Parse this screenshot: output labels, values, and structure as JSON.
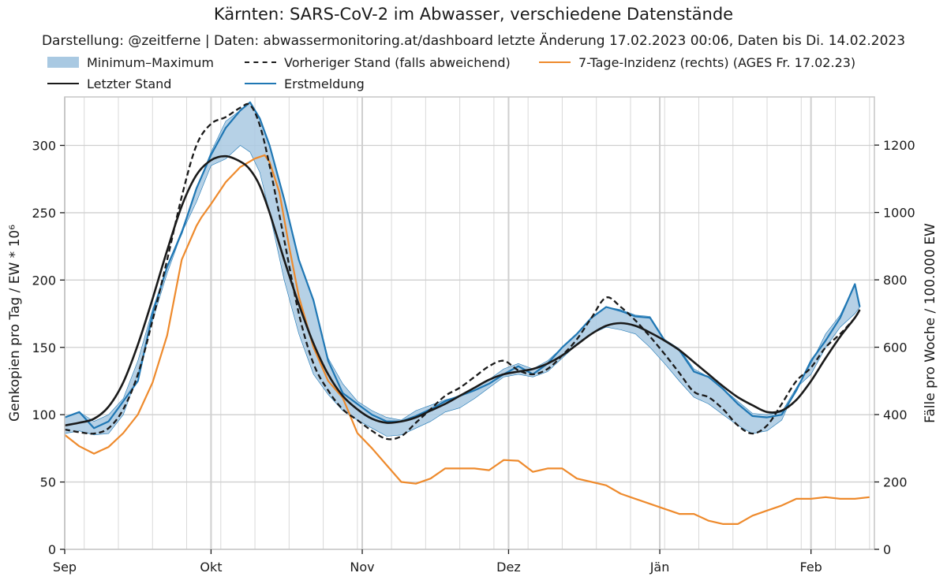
{
  "chart_data": {
    "type": "line",
    "title": "Kärnten: SARS-CoV-2 im Abwasser, verschiedene Datenstände",
    "subtitle": "Darstellung: @zeitferne | Daten: abwassermonitoring.at/dashboard letzte Änderung 17.02.2023 00:06, Daten bis Di. 14.02.2023",
    "ylabel": "Genkopien pro Tag / EW * 10⁶",
    "y2label": "Fälle pro Woche / 100.000 EW",
    "ylim": [
      0,
      336
    ],
    "y2lim": [
      0,
      1343
    ],
    "yticks": [
      0,
      50,
      100,
      150,
      200,
      250,
      300
    ],
    "y2ticks": [
      0,
      200,
      400,
      600,
      800,
      1000,
      1200
    ],
    "xlim_day": [
      0,
      166
    ],
    "xticks": [
      {
        "day": 0,
        "label": "Sep"
      },
      {
        "day": 30,
        "label": "Okt"
      },
      {
        "day": 61,
        "label": "Nov"
      },
      {
        "day": 91,
        "label": "Dez"
      },
      {
        "day": 122,
        "label": "Jän"
      },
      {
        "day": 153,
        "label": "Feb"
      }
    ],
    "minor_grid_days": [
      4,
      11,
      18,
      25,
      32,
      39,
      46,
      53,
      60,
      67,
      74,
      81,
      88,
      95,
      102,
      109,
      116,
      123,
      130,
      137,
      144,
      151,
      158,
      165
    ],
    "grid": true,
    "legend_position": "top",
    "colors": {
      "band": "#a9c9e2",
      "band_edge": "#1f77b4",
      "latest": "#1a1a1a",
      "previous": "#1a1a1a",
      "first": "#1f77b4",
      "incidence": "#ee8a2c"
    },
    "series": [
      {
        "name": "Minimum–Maximum",
        "kind": "band",
        "x": [
          0,
          3,
          6,
          9,
          12,
          15,
          18,
          21,
          24,
          27,
          30,
          33,
          36,
          38,
          40,
          42,
          45,
          48,
          51,
          54,
          57,
          60,
          63,
          66,
          69,
          72,
          75,
          78,
          81,
          84,
          87,
          90,
          93,
          96,
          99,
          102,
          105,
          108,
          111,
          114,
          117,
          120,
          123,
          126,
          129,
          132,
          135,
          138,
          141,
          144,
          147,
          150,
          153,
          156,
          159,
          162,
          163
        ],
        "low": [
          86,
          88,
          85,
          86,
          100,
          130,
          170,
          205,
          235,
          258,
          285,
          290,
          300,
          295,
          280,
          250,
          200,
          160,
          130,
          115,
          103,
          96,
          90,
          84,
          85,
          90,
          95,
          102,
          105,
          112,
          120,
          128,
          130,
          128,
          132,
          142,
          152,
          160,
          165,
          163,
          160,
          150,
          138,
          125,
          113,
          108,
          100,
          92,
          86,
          88,
          96,
          120,
          130,
          150,
          165,
          175,
          180
        ],
        "high": [
          98,
          102,
          95,
          100,
          112,
          140,
          178,
          210,
          237,
          268,
          295,
          318,
          326,
          332,
          320,
          300,
          260,
          215,
          185,
          142,
          123,
          110,
          103,
          98,
          96,
          103,
          107,
          111,
          114,
          120,
          126,
          134,
          138,
          134,
          140,
          150,
          160,
          172,
          180,
          178,
          174,
          173,
          156,
          149,
          134,
          128,
          119,
          110,
          101,
          100,
          102,
          120,
          138,
          160,
          174,
          197,
          180
        ]
      },
      {
        "name": "Vorheriger Stand (falls abweichend)",
        "kind": "dashed",
        "x": [
          0,
          3,
          6,
          9,
          12,
          15,
          18,
          21,
          24,
          27,
          30,
          33,
          36,
          38,
          40,
          42,
          45,
          48,
          51,
          54,
          57,
          60,
          63,
          66,
          69,
          72,
          75,
          78,
          81,
          84,
          87,
          90,
          93,
          96,
          99,
          102,
          105,
          108,
          111,
          114,
          117,
          120,
          123,
          126,
          129,
          132,
          135,
          138,
          141,
          144,
          147,
          150,
          153,
          156,
          159,
          162,
          163
        ],
        "values": [
          89,
          87,
          86,
          90,
          104,
          130,
          170,
          215,
          262,
          300,
          316,
          321,
          328,
          330,
          315,
          285,
          230,
          175,
          138,
          118,
          104,
          96,
          88,
          82,
          84,
          94,
          104,
          114,
          120,
          128,
          136,
          140,
          133,
          130,
          134,
          144,
          156,
          172,
          187,
          180,
          170,
          158,
          145,
          131,
          117,
          113,
          104,
          92,
          86,
          92,
          108,
          125,
          135,
          150,
          160,
          172,
          178
        ]
      },
      {
        "name": "Letzter Stand",
        "kind": "solid",
        "x": [
          0,
          3,
          6,
          9,
          12,
          15,
          18,
          21,
          24,
          27,
          30,
          33,
          36,
          38,
          40,
          42,
          45,
          48,
          51,
          54,
          57,
          60,
          63,
          66,
          69,
          72,
          75,
          78,
          81,
          84,
          87,
          90,
          93,
          96,
          99,
          102,
          105,
          108,
          111,
          114,
          117,
          120,
          123,
          126,
          129,
          132,
          135,
          138,
          141,
          144,
          147,
          150,
          153,
          156,
          159,
          162,
          163
        ],
        "values": [
          92,
          94,
          97,
          106,
          124,
          152,
          186,
          222,
          255,
          278,
          289,
          292,
          288,
          282,
          270,
          250,
          215,
          182,
          153,
          130,
          114,
          104,
          97,
          94,
          95,
          98,
          103,
          108,
          114,
          120,
          126,
          130,
          132,
          134,
          138,
          144,
          152,
          160,
          166,
          168,
          166,
          161,
          155,
          148,
          139,
          130,
          121,
          113,
          107,
          102,
          103,
          111,
          125,
          142,
          158,
          172,
          178
        ]
      },
      {
        "name": "Erstmeldung",
        "kind": "solid",
        "x": [
          0,
          3,
          6,
          9,
          12,
          15,
          18,
          21,
          24,
          27,
          30,
          33,
          36,
          38,
          40,
          42,
          45,
          48,
          51,
          54,
          57,
          60,
          63,
          66,
          69,
          72,
          75,
          78,
          81,
          84,
          87,
          90,
          93,
          96,
          99,
          102,
          105,
          108,
          111,
          114,
          117,
          120,
          123,
          126,
          129,
          132,
          135,
          138,
          141,
          144,
          147,
          150,
          153,
          156,
          159,
          162,
          163
        ],
        "values": [
          98,
          102,
          90,
          95,
          110,
          125,
          175,
          210,
          235,
          268,
          293,
          313,
          326,
          332,
          320,
          300,
          260,
          215,
          185,
          140,
          116,
          108,
          100,
          95,
          95,
          99,
          104,
          110,
          114,
          118,
          123,
          130,
          136,
          130,
          138,
          150,
          160,
          172,
          180,
          177,
          173,
          172,
          155,
          148,
          132,
          128,
          119,
          108,
          99,
          98,
          100,
          118,
          140,
          155,
          172,
          197,
          180
        ]
      },
      {
        "name": "7-Tage-Inzidenz (rechts) (AGES Fr. 17.02.23)",
        "kind": "right",
        "x": [
          0,
          3,
          6,
          9,
          12,
          15,
          18,
          21,
          24,
          27,
          28,
          30,
          33,
          36,
          39,
          41,
          42,
          44,
          46,
          48,
          51,
          54,
          57,
          60,
          63,
          66,
          69,
          72,
          75,
          78,
          81,
          84,
          87,
          90,
          93,
          96,
          99,
          102,
          105,
          108,
          111,
          114,
          117,
          120,
          123,
          126,
          129,
          132,
          135,
          138,
          141,
          144,
          147,
          150,
          153,
          156,
          159,
          162,
          165
        ],
        "values": [
          340,
          306,
          284,
          304,
          345,
          400,
          495,
          635,
          860,
          960,
          985,
          1025,
          1090,
          1135,
          1160,
          1170,
          1150,
          1060,
          900,
          750,
          600,
          500,
          450,
          345,
          300,
          250,
          200,
          195,
          210,
          240,
          240,
          240,
          235,
          265,
          263,
          230,
          240,
          240,
          210,
          200,
          190,
          165,
          150,
          135,
          120,
          105,
          105,
          85,
          75,
          75,
          100,
          115,
          130,
          150,
          150,
          155,
          150,
          150,
          155
        ]
      }
    ]
  },
  "legend": [
    {
      "key": "band",
      "label": "Minimum–Maximum"
    },
    {
      "key": "previous",
      "label": "Vorheriger Stand (falls abweichend)"
    },
    {
      "key": "incidence",
      "label": "7-Tage-Inzidenz (rechts) (AGES Fr. 17.02.23)"
    },
    {
      "key": "latest",
      "label": "Letzter Stand"
    },
    {
      "key": "first",
      "label": "Erstmeldung"
    }
  ]
}
